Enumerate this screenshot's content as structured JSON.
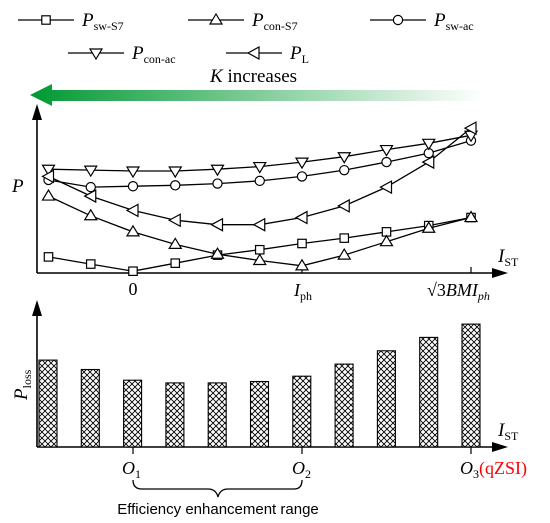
{
  "legend": {
    "items": [
      {
        "key": "sw_s7",
        "main": "P",
        "sub": "sw-S7",
        "marker": "square"
      },
      {
        "key": "con_s7",
        "main": "P",
        "sub": "con-S7",
        "marker": "triangle-up"
      },
      {
        "key": "sw_ac",
        "main": "P",
        "sub": "sw-ac",
        "marker": "circle"
      },
      {
        "key": "con_ac",
        "main": "P",
        "sub": "con-ac",
        "marker": "triangle-down"
      },
      {
        "key": "pl",
        "main": "P",
        "sub": "L",
        "marker": "triangle-left"
      }
    ]
  },
  "arrow": {
    "text_k": "K",
    "text_rest": " increases",
    "gradient_start": "#009933",
    "gradient_end": "#ffffff"
  },
  "top_chart": {
    "ylabel": "P",
    "xlabel_main": "I",
    "xlabel_sub": "ST",
    "ticks": {
      "zero": "0",
      "iph_main": "I",
      "iph_sub": "ph",
      "max_sqrt": "√3",
      "max_main": "BMI",
      "max_sub": "ph"
    }
  },
  "bottom_chart": {
    "ylabel_main": "P",
    "ylabel_sub": "loss",
    "xlabel_main": "I",
    "xlabel_sub": "ST",
    "ticks": {
      "o1_main": "O",
      "o1_sub": "1",
      "o2_main": "O",
      "o2_sub": "2",
      "o3_main": "O",
      "o3_sub": "3",
      "qzsi": "(qZSI)"
    },
    "brace_label": "Efficiency enhancement range"
  },
  "colors": {
    "accent": "#ff0000",
    "bar_fill": "#000000"
  },
  "chart_data": [
    {
      "type": "line",
      "x": [
        -8,
        -4,
        0,
        4,
        8,
        12,
        16,
        20,
        24,
        28,
        32
      ],
      "x_note_ticks": {
        "0": "0",
        "16": "Iph",
        "32": "√3BMIph"
      },
      "series": [
        {
          "name": "Psw-S7",
          "values": [
            1.8,
            1.0,
            0.2,
            1.1,
            2.0,
            2.6,
            3.3,
            3.9,
            4.6,
            5.3,
            6.2
          ]
        },
        {
          "name": "Pcon-S7",
          "values": [
            8.6,
            6.4,
            4.6,
            3.2,
            2.1,
            1.4,
            0.8,
            2.0,
            3.5,
            5.0,
            6.2
          ]
        },
        {
          "name": "Psw-ac",
          "values": [
            10.4,
            9.6,
            9.7,
            9.8,
            10.0,
            10.3,
            10.8,
            11.5,
            12.4,
            13.4,
            14.8
          ]
        },
        {
          "name": "Pcon-ac",
          "values": [
            11.6,
            11.5,
            11.4,
            11.4,
            11.6,
            11.9,
            12.4,
            13.0,
            13.8,
            14.5,
            15.4
          ]
        },
        {
          "name": "PL",
          "values": [
            10.8,
            8.6,
            7.0,
            5.9,
            5.4,
            5.4,
            6.2,
            7.5,
            9.6,
            12.4,
            16.2
          ]
        }
      ],
      "ylim": [
        0,
        18
      ]
    },
    {
      "type": "bar",
      "categories": [
        "",
        "",
        "O1",
        "",
        "",
        "",
        "O2",
        "",
        "",
        "",
        "O3"
      ],
      "values": [
        6.5,
        5.8,
        5.0,
        4.8,
        4.8,
        4.9,
        5.3,
        6.2,
        7.2,
        8.2,
        9.2
      ],
      "ylim": [
        0,
        11
      ]
    }
  ]
}
